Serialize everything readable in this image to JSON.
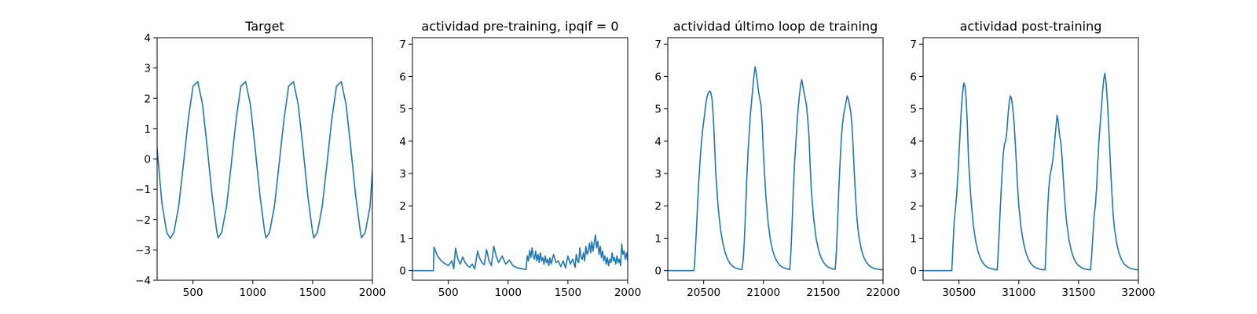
{
  "chart_data": [
    {
      "type": "line",
      "title": "Target",
      "xlabel": "",
      "ylabel": "",
      "xlim": [
        200,
        2000
      ],
      "ylim": [
        -4,
        4
      ],
      "xticks": [
        500,
        1000,
        1500,
        2000
      ],
      "yticks": [
        -4,
        -3,
        -2,
        -1,
        0,
        1,
        2,
        3,
        4
      ],
      "color": "#1f77b4",
      "series": [
        {
          "x": [
            200,
            240,
            280,
            310,
            340,
            380,
            420,
            460,
            500,
            540,
            580,
            620,
            660,
            700,
            710,
            740,
            780,
            820,
            860,
            900,
            940,
            980,
            1020,
            1060,
            1100,
            1110,
            1140,
            1180,
            1220,
            1260,
            1300,
            1340,
            1380,
            1420,
            1460,
            1500,
            1510,
            1540,
            1580,
            1620,
            1660,
            1700,
            1740,
            1780,
            1820,
            1860,
            1900,
            1910,
            1940,
            1980,
            2000
          ],
          "y": [
            0.34,
            -1.46,
            -2.42,
            -2.62,
            -2.42,
            -1.57,
            -0.17,
            1.29,
            2.4,
            2.55,
            1.79,
            0.34,
            -1.21,
            -2.42,
            -2.6,
            -2.42,
            -1.58,
            -0.17,
            1.29,
            2.4,
            2.55,
            1.79,
            0.34,
            -1.21,
            -2.42,
            -2.6,
            -2.42,
            -1.58,
            -0.17,
            1.29,
            2.4,
            2.55,
            1.79,
            0.34,
            -1.21,
            -2.42,
            -2.6,
            -2.42,
            -1.58,
            -0.17,
            1.29,
            2.4,
            2.55,
            1.79,
            0.34,
            -1.21,
            -2.42,
            -2.6,
            -2.42,
            -1.58,
            -0.4
          ]
        }
      ]
    },
    {
      "type": "line",
      "title": "actividad pre-training, ipqif = 0",
      "xlabel": "",
      "ylabel": "",
      "xlim": [
        200,
        2000
      ],
      "ylim": [
        -0.3,
        7.2
      ],
      "xticks": [
        500,
        1000,
        1500,
        2000
      ],
      "yticks": [
        0,
        1,
        2,
        3,
        4,
        5,
        6,
        7
      ],
      "color": "#1f77b4",
      "series": [
        {
          "x": [
            200,
            375,
            380,
            410,
            440,
            470,
            500,
            530,
            545,
            560,
            580,
            600,
            620,
            640,
            660,
            680,
            700,
            720,
            745,
            760,
            780,
            800,
            820,
            840,
            860,
            880,
            900,
            920,
            950,
            980,
            1010,
            1040,
            1080,
            1120,
            1150,
            1160,
            1170,
            1180,
            1190,
            1200,
            1210,
            1220,
            1230,
            1240,
            1250,
            1260,
            1270,
            1280,
            1290,
            1300,
            1310,
            1320,
            1330,
            1340,
            1350,
            1360,
            1380,
            1400,
            1420,
            1440,
            1460,
            1480,
            1500,
            1520,
            1540,
            1560,
            1570,
            1580,
            1590,
            1600,
            1610,
            1620,
            1630,
            1640,
            1650,
            1660,
            1670,
            1680,
            1690,
            1700,
            1710,
            1720,
            1730,
            1740,
            1750,
            1760,
            1770,
            1780,
            1790,
            1800,
            1810,
            1820,
            1830,
            1840,
            1850,
            1860,
            1870,
            1880,
            1890,
            1900,
            1910,
            1920,
            1930,
            1940,
            1950,
            1960,
            1970,
            1980,
            1990,
            2000
          ],
          "y": [
            0,
            0,
            0.72,
            0.45,
            0.3,
            0.22,
            0.15,
            0.3,
            0.05,
            0.69,
            0.35,
            0.2,
            0.42,
            0.25,
            0.15,
            0.1,
            0.2,
            0.05,
            0.6,
            0.4,
            0.25,
            0.18,
            0.65,
            0.3,
            0.15,
            0.75,
            0.45,
            0.25,
            0.45,
            0.2,
            0.32,
            0.15,
            0.08,
            0.05,
            0.03,
            0.45,
            0.3,
            0.62,
            0.4,
            0.7,
            0.45,
            0.35,
            0.6,
            0.3,
            0.5,
            0.25,
            0.55,
            0.3,
            0.4,
            0.2,
            0.45,
            0.25,
            0.35,
            0.15,
            0.4,
            0.2,
            0.5,
            0.25,
            0.3,
            0.12,
            0.3,
            0.08,
            0.45,
            0.2,
            0.35,
            0.1,
            0.5,
            0.3,
            0.25,
            0.7,
            0.4,
            0.35,
            0.55,
            0.3,
            0.75,
            0.5,
            0.6,
            0.85,
            0.55,
            0.9,
            0.6,
            0.85,
            1.1,
            0.7,
            0.9,
            0.5,
            0.75,
            0.4,
            0.6,
            0.3,
            0.45,
            0.2,
            0.4,
            0.15,
            0.35,
            0.25,
            0.55,
            0.3,
            0.4,
            0.2,
            0.45,
            0.25,
            0.35,
            0.15,
            0.82,
            0.5,
            0.6,
            0.35,
            0.55,
            0.3
          ]
        }
      ]
    },
    {
      "type": "line",
      "title": "actividad último loop de training",
      "xlabel": "",
      "ylabel": "",
      "xlim": [
        20200,
        22000
      ],
      "ylim": [
        -0.3,
        7.2
      ],
      "xticks": [
        20500,
        21000,
        21500,
        22000
      ],
      "yticks": [
        0,
        1,
        2,
        3,
        4,
        5,
        6,
        7
      ],
      "color": "#1f77b4",
      "series": [
        {
          "x": [
            20200,
            20420,
            20430,
            20440,
            20450,
            20460,
            20470,
            20480,
            20490,
            20500,
            20510,
            20520,
            20530,
            20540,
            20550,
            20560,
            20570,
            20580,
            20590,
            20600,
            20620,
            20640,
            20660,
            20680,
            20700,
            20720,
            20740,
            20760,
            20780,
            20800,
            20820,
            20830,
            20840,
            20850,
            20860,
            20870,
            20880,
            20890,
            20900,
            20910,
            20920,
            20930,
            20940,
            20950,
            20960,
            20970,
            20980,
            20990,
            21000,
            21020,
            21040,
            21060,
            21080,
            21100,
            21120,
            21140,
            21160,
            21180,
            21200,
            21220,
            21230,
            21240,
            21250,
            21260,
            21270,
            21280,
            21290,
            21300,
            21310,
            21320,
            21330,
            21340,
            21350,
            21360,
            21370,
            21380,
            21390,
            21400,
            21420,
            21440,
            21460,
            21480,
            21500,
            21520,
            21540,
            21560,
            21580,
            21600,
            21610,
            21620,
            21630,
            21640,
            21650,
            21660,
            21670,
            21680,
            21690,
            21700,
            21710,
            21720,
            21730,
            21740,
            21750,
            21760,
            21770,
            21780,
            21790,
            21800,
            21820,
            21840,
            21860,
            21880,
            21900,
            21920,
            21940,
            21960,
            21980,
            22000
          ],
          "y": [
            0,
            0,
            0.6,
            1.3,
            2.1,
            2.8,
            3.4,
            3.9,
            4.3,
            4.6,
            4.9,
            5.2,
            5.4,
            5.5,
            5.55,
            5.5,
            5.3,
            4.8,
            4.0,
            3.1,
            2.0,
            1.3,
            0.85,
            0.55,
            0.35,
            0.22,
            0.14,
            0.09,
            0.06,
            0.04,
            0.03,
            0.3,
            0.9,
            1.8,
            2.8,
            3.6,
            4.2,
            4.8,
            5.2,
            5.6,
            6.0,
            6.3,
            6.1,
            5.8,
            5.5,
            5.3,
            5.1,
            4.5,
            3.6,
            2.3,
            1.45,
            0.9,
            0.58,
            0.37,
            0.24,
            0.15,
            0.1,
            0.07,
            0.05,
            0.03,
            0.6,
            1.5,
            2.5,
            3.3,
            3.9,
            4.5,
            5.0,
            5.4,
            5.7,
            5.9,
            5.7,
            5.5,
            5.3,
            5.1,
            4.7,
            4.2,
            3.3,
            2.5,
            1.6,
            1.0,
            0.65,
            0.42,
            0.27,
            0.17,
            0.11,
            0.08,
            0.05,
            0.04,
            0.6,
            1.5,
            2.5,
            3.3,
            4.0,
            4.5,
            4.8,
            5.0,
            5.2,
            5.4,
            5.3,
            5.1,
            4.9,
            4.5,
            3.8,
            3.0,
            2.3,
            1.7,
            1.3,
            1.0,
            0.63,
            0.4,
            0.26,
            0.17,
            0.11,
            0.07,
            0.05,
            0.04,
            0.03,
            0.02
          ]
        }
      ]
    },
    {
      "type": "line",
      "title": "actividad post-training",
      "xlabel": "",
      "ylabel": "",
      "xlim": [
        30200,
        32000
      ],
      "ylim": [
        -0.3,
        7.2
      ],
      "xticks": [
        30500,
        31000,
        31500,
        32000
      ],
      "yticks": [
        0,
        1,
        2,
        3,
        4,
        5,
        6,
        7
      ],
      "color": "#1f77b4",
      "series": [
        {
          "x": [
            30200,
            30440,
            30450,
            30460,
            30470,
            30480,
            30490,
            30500,
            30510,
            30520,
            30530,
            30540,
            30550,
            30560,
            30570,
            30580,
            30600,
            30620,
            30640,
            30660,
            30680,
            30700,
            30720,
            30740,
            30760,
            30780,
            30800,
            30820,
            30830,
            30840,
            30850,
            30860,
            30870,
            30880,
            30890,
            30900,
            30910,
            30920,
            30930,
            30940,
            30950,
            30960,
            30970,
            30980,
            30990,
            31000,
            31020,
            31040,
            31060,
            31080,
            31100,
            31120,
            31140,
            31160,
            31180,
            31200,
            31220,
            31230,
            31240,
            31250,
            31260,
            31270,
            31280,
            31290,
            31300,
            31310,
            31320,
            31330,
            31340,
            31350,
            31360,
            31370,
            31380,
            31390,
            31400,
            31420,
            31440,
            31460,
            31480,
            31500,
            31520,
            31540,
            31560,
            31580,
            31600,
            31610,
            31620,
            31630,
            31640,
            31650,
            31660,
            31670,
            31680,
            31690,
            31700,
            31710,
            31720,
            31730,
            31740,
            31750,
            31760,
            31770,
            31780,
            31790,
            31800,
            31820,
            31840,
            31860,
            31880,
            31900,
            31920,
            31940,
            31960,
            31980,
            32000
          ],
          "y": [
            0,
            0,
            0.8,
            1.5,
            1.9,
            2.3,
            2.9,
            3.6,
            4.3,
            5.0,
            5.5,
            5.8,
            5.7,
            5.3,
            4.5,
            3.4,
            2.2,
            1.4,
            0.9,
            0.58,
            0.37,
            0.24,
            0.15,
            0.1,
            0.07,
            0.05,
            0.03,
            0.02,
            0.7,
            1.5,
            2.3,
            3.0,
            3.6,
            3.9,
            4.0,
            4.3,
            4.8,
            5.2,
            5.4,
            5.3,
            5.0,
            4.6,
            4.0,
            3.3,
            2.6,
            2.0,
            1.3,
            0.85,
            0.55,
            0.35,
            0.22,
            0.14,
            0.09,
            0.06,
            0.04,
            0.03,
            0.02,
            0.9,
            1.8,
            2.5,
            2.9,
            3.1,
            3.3,
            3.6,
            4.0,
            4.4,
            4.8,
            4.6,
            4.2,
            4.0,
            3.6,
            3.0,
            2.4,
            1.9,
            1.5,
            0.95,
            0.6,
            0.38,
            0.24,
            0.15,
            0.1,
            0.06,
            0.04,
            0.03,
            0.02,
            0.5,
            1.1,
            1.7,
            2.0,
            2.5,
            3.3,
            4.0,
            4.5,
            5.0,
            5.5,
            5.9,
            6.1,
            5.8,
            5.3,
            4.6,
            3.8,
            3.0,
            2.3,
            1.7,
            1.3,
            0.82,
            0.52,
            0.33,
            0.21,
            0.14,
            0.09,
            0.06,
            0.04,
            0.03,
            0.02
          ]
        }
      ]
    }
  ]
}
